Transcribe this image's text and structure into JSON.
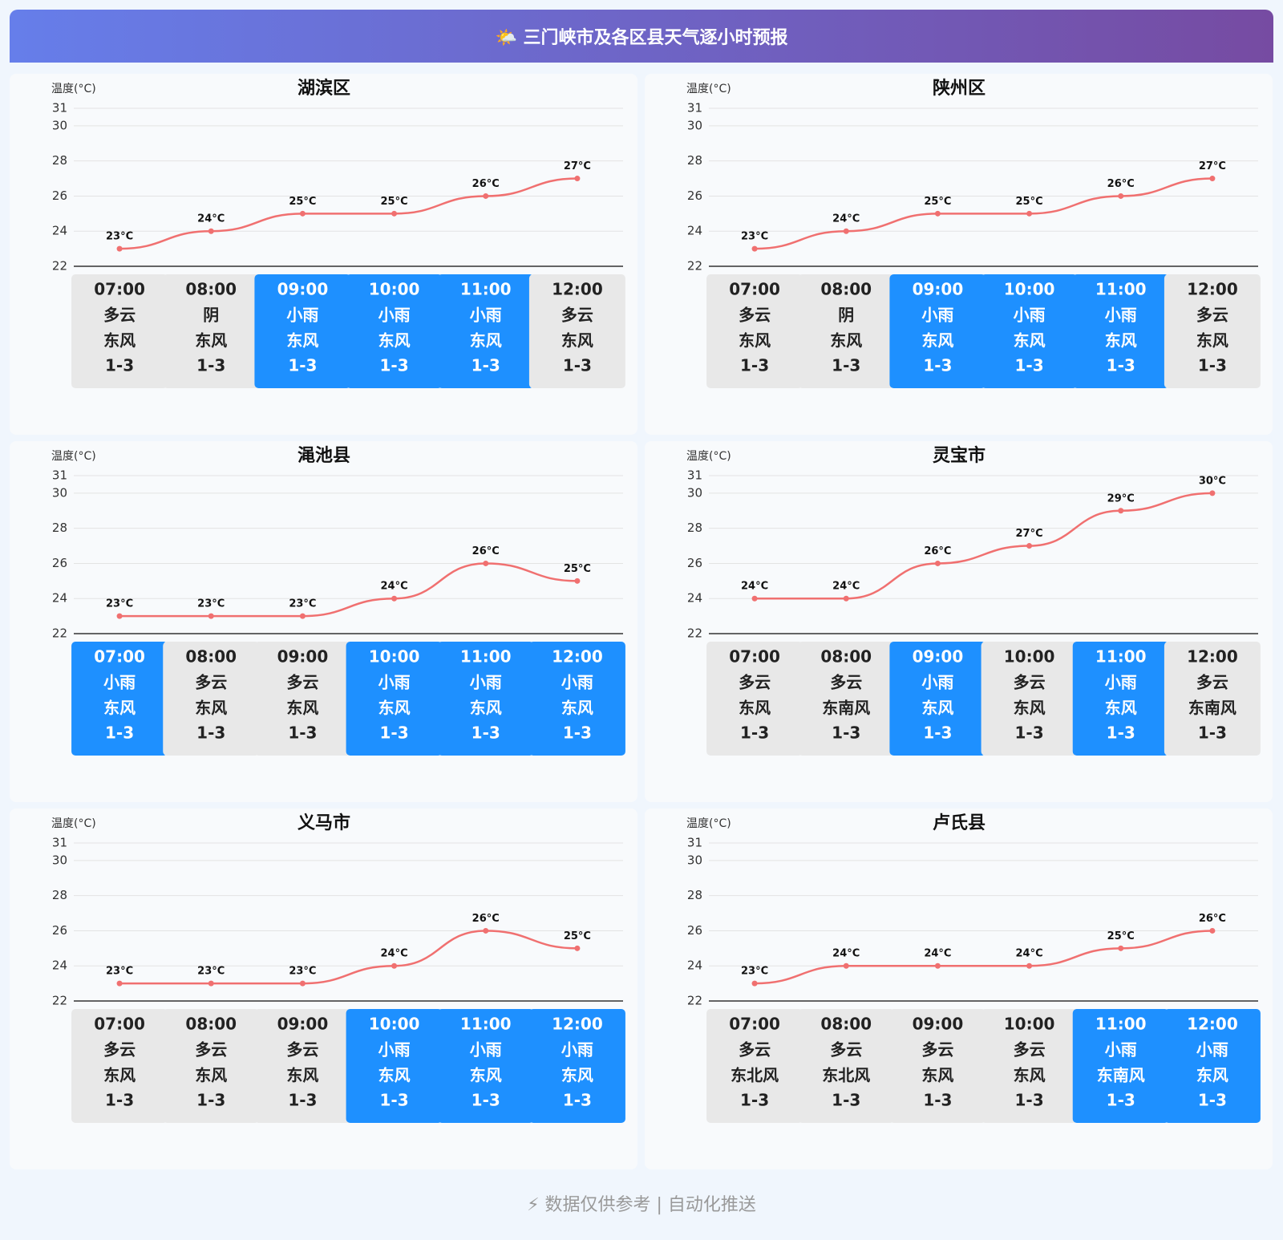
{
  "title": "🌤️ 三门峡市及各区县天气逐小时预报",
  "footer": "⚡ 数据仅供参考 | 自动化推送",
  "chart_data": [
    {
      "type": "line",
      "title": "湖滨区",
      "y_label": "温度(°C)",
      "color": "#f07070",
      "grid": true,
      "smooth": true,
      "ylim": [
        22,
        31
      ],
      "yticks": [
        22,
        24,
        26,
        28,
        30,
        31
      ],
      "categories": [
        "07:00",
        "08:00",
        "09:00",
        "10:00",
        "11:00",
        "12:00"
      ],
      "values": [
        23,
        24,
        25,
        25,
        26,
        27
      ],
      "value_labels": [
        "23°C",
        "24°C",
        "25°C",
        "25°C",
        "26°C",
        "27°C"
      ],
      "weather": [
        "多云",
        "阴",
        "小雨",
        "小雨",
        "小雨",
        "多云"
      ],
      "wind": [
        "东风",
        "东风",
        "东风",
        "东风",
        "东风",
        "东风"
      ],
      "wind_level": [
        "1-3",
        "1-3",
        "1-3",
        "1-3",
        "1-3",
        "1-3"
      ],
      "box_colors": [
        "#e8e8e8",
        "#e8e8e8",
        "#1e90ff",
        "#1e90ff",
        "#1e90ff",
        "#e8e8e8"
      ]
    },
    {
      "type": "line",
      "title": "陕州区",
      "y_label": "温度(°C)",
      "color": "#f07070",
      "grid": true,
      "smooth": true,
      "ylim": [
        22,
        31
      ],
      "yticks": [
        22,
        24,
        26,
        28,
        30,
        31
      ],
      "categories": [
        "07:00",
        "08:00",
        "09:00",
        "10:00",
        "11:00",
        "12:00"
      ],
      "values": [
        23,
        24,
        25,
        25,
        26,
        27
      ],
      "value_labels": [
        "23°C",
        "24°C",
        "25°C",
        "25°C",
        "26°C",
        "27°C"
      ],
      "weather": [
        "多云",
        "阴",
        "小雨",
        "小雨",
        "小雨",
        "多云"
      ],
      "wind": [
        "东风",
        "东风",
        "东风",
        "东风",
        "东风",
        "东风"
      ],
      "wind_level": [
        "1-3",
        "1-3",
        "1-3",
        "1-3",
        "1-3",
        "1-3"
      ],
      "box_colors": [
        "#e8e8e8",
        "#e8e8e8",
        "#1e90ff",
        "#1e90ff",
        "#1e90ff",
        "#e8e8e8"
      ]
    },
    {
      "type": "line",
      "title": "渑池县",
      "y_label": "温度(°C)",
      "color": "#f07070",
      "grid": true,
      "smooth": true,
      "ylim": [
        22,
        31
      ],
      "yticks": [
        22,
        24,
        26,
        28,
        30,
        31
      ],
      "categories": [
        "07:00",
        "08:00",
        "09:00",
        "10:00",
        "11:00",
        "12:00"
      ],
      "values": [
        23,
        23,
        23,
        24,
        26,
        25
      ],
      "value_labels": [
        "23°C",
        "23°C",
        "23°C",
        "24°C",
        "26°C",
        "25°C"
      ],
      "weather": [
        "小雨",
        "多云",
        "多云",
        "小雨",
        "小雨",
        "小雨"
      ],
      "wind": [
        "东风",
        "东风",
        "东风",
        "东风",
        "东风",
        "东风"
      ],
      "wind_level": [
        "1-3",
        "1-3",
        "1-3",
        "1-3",
        "1-3",
        "1-3"
      ],
      "box_colors": [
        "#1e90ff",
        "#e8e8e8",
        "#e8e8e8",
        "#1e90ff",
        "#1e90ff",
        "#1e90ff"
      ]
    },
    {
      "type": "line",
      "title": "灵宝市",
      "y_label": "温度(°C)",
      "color": "#f07070",
      "grid": true,
      "smooth": true,
      "ylim": [
        22,
        31
      ],
      "yticks": [
        22,
        24,
        26,
        28,
        30,
        31
      ],
      "categories": [
        "07:00",
        "08:00",
        "09:00",
        "10:00",
        "11:00",
        "12:00"
      ],
      "values": [
        24,
        24,
        26,
        27,
        29,
        30
      ],
      "value_labels": [
        "24°C",
        "24°C",
        "26°C",
        "27°C",
        "29°C",
        "30°C"
      ],
      "weather": [
        "多云",
        "多云",
        "小雨",
        "多云",
        "小雨",
        "多云"
      ],
      "wind": [
        "东风",
        "东南风",
        "东风",
        "东风",
        "东风",
        "东南风"
      ],
      "wind_level": [
        "1-3",
        "1-3",
        "1-3",
        "1-3",
        "1-3",
        "1-3"
      ],
      "box_colors": [
        "#e8e8e8",
        "#e8e8e8",
        "#1e90ff",
        "#e8e8e8",
        "#1e90ff",
        "#e8e8e8"
      ]
    },
    {
      "type": "line",
      "title": "义马市",
      "y_label": "温度(°C)",
      "color": "#f07070",
      "grid": true,
      "smooth": true,
      "ylim": [
        22,
        31
      ],
      "yticks": [
        22,
        24,
        26,
        28,
        30,
        31
      ],
      "categories": [
        "07:00",
        "08:00",
        "09:00",
        "10:00",
        "11:00",
        "12:00"
      ],
      "values": [
        23,
        23,
        23,
        24,
        26,
        25
      ],
      "value_labels": [
        "23°C",
        "23°C",
        "23°C",
        "24°C",
        "26°C",
        "25°C"
      ],
      "weather": [
        "多云",
        "多云",
        "多云",
        "小雨",
        "小雨",
        "小雨"
      ],
      "wind": [
        "东风",
        "东风",
        "东风",
        "东风",
        "东风",
        "东风"
      ],
      "wind_level": [
        "1-3",
        "1-3",
        "1-3",
        "1-3",
        "1-3",
        "1-3"
      ],
      "box_colors": [
        "#e8e8e8",
        "#e8e8e8",
        "#e8e8e8",
        "#1e90ff",
        "#1e90ff",
        "#1e90ff"
      ]
    },
    {
      "type": "line",
      "title": "卢氏县",
      "y_label": "温度(°C)",
      "color": "#f07070",
      "grid": true,
      "smooth": true,
      "ylim": [
        22,
        31
      ],
      "yticks": [
        22,
        24,
        26,
        28,
        30,
        31
      ],
      "categories": [
        "07:00",
        "08:00",
        "09:00",
        "10:00",
        "11:00",
        "12:00"
      ],
      "values": [
        23,
        24,
        24,
        24,
        25,
        26
      ],
      "value_labels": [
        "23°C",
        "24°C",
        "24°C",
        "24°C",
        "25°C",
        "26°C"
      ],
      "weather": [
        "多云",
        "多云",
        "多云",
        "多云",
        "小雨",
        "小雨"
      ],
      "wind": [
        "东北风",
        "东北风",
        "东风",
        "东风",
        "东南风",
        "东风"
      ],
      "wind_level": [
        "1-3",
        "1-3",
        "1-3",
        "1-3",
        "1-3",
        "1-3"
      ],
      "box_colors": [
        "#e8e8e8",
        "#e8e8e8",
        "#e8e8e8",
        "#e8e8e8",
        "#1e90ff",
        "#1e90ff"
      ]
    }
  ]
}
